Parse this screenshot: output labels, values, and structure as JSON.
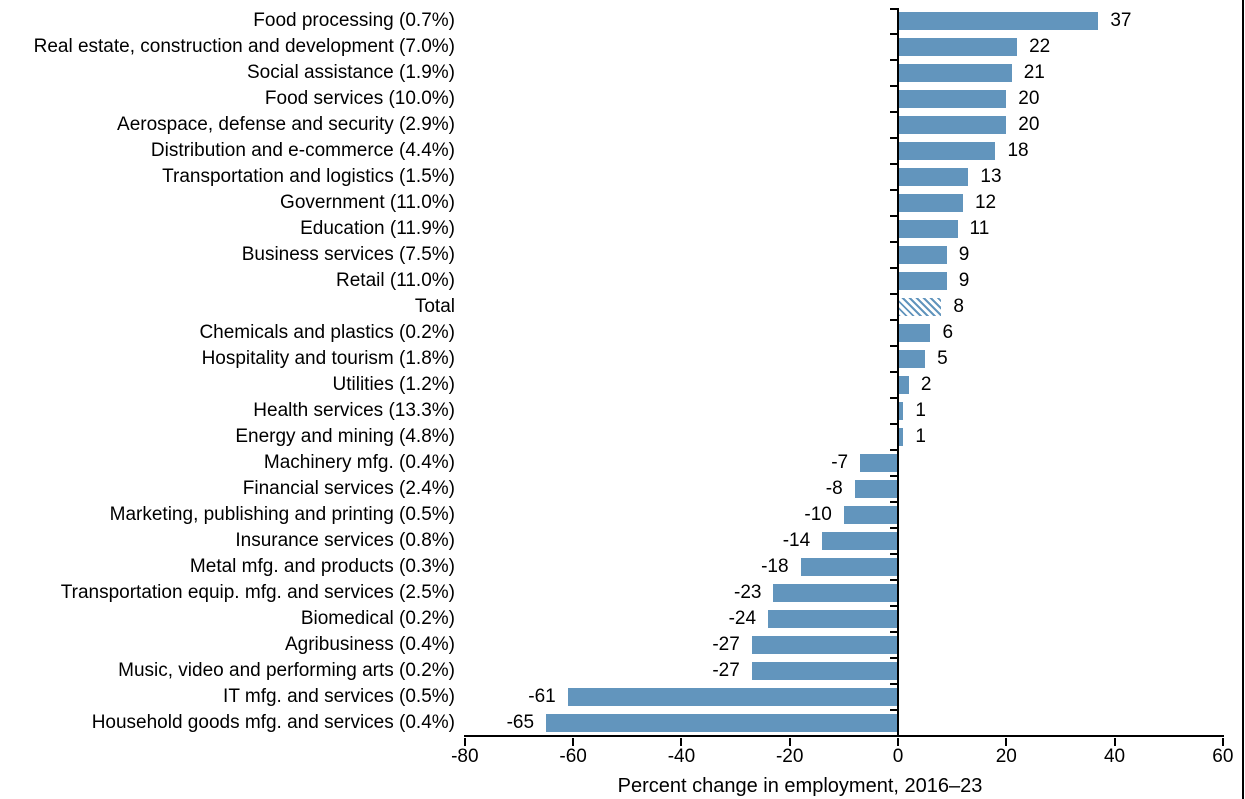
{
  "chart_data": {
    "type": "bar",
    "orientation": "horizontal",
    "title": "",
    "xlabel": "Percent change in employment, 2016–23",
    "ylabel": "",
    "xlim": [
      -80,
      60
    ],
    "xticks": [
      -80,
      -60,
      -40,
      -20,
      0,
      20,
      40,
      60
    ],
    "grid": false,
    "legend": "none",
    "bar_color": "#6295BD",
    "hatched_bar_style": "diagonal-stripes",
    "rows": [
      {
        "label": "Food processing (0.7%)",
        "value": 37,
        "hatched": false
      },
      {
        "label": "Real estate, construction and development (7.0%)",
        "value": 22,
        "hatched": false
      },
      {
        "label": "Social assistance (1.9%)",
        "value": 21,
        "hatched": false
      },
      {
        "label": "Food services (10.0%)",
        "value": 20,
        "hatched": false
      },
      {
        "label": "Aerospace, defense and security (2.9%)",
        "value": 20,
        "hatched": false
      },
      {
        "label": "Distribution and e-commerce (4.4%)",
        "value": 18,
        "hatched": false
      },
      {
        "label": "Transportation and logistics (1.5%)",
        "value": 13,
        "hatched": false
      },
      {
        "label": "Government (11.0%)",
        "value": 12,
        "hatched": false
      },
      {
        "label": "Education (11.9%)",
        "value": 11,
        "hatched": false
      },
      {
        "label": "Business services (7.5%)",
        "value": 9,
        "hatched": false
      },
      {
        "label": "Retail (11.0%)",
        "value": 9,
        "hatched": false
      },
      {
        "label": "Total",
        "value": 8,
        "hatched": true
      },
      {
        "label": "Chemicals and plastics (0.2%)",
        "value": 6,
        "hatched": false
      },
      {
        "label": "Hospitality and tourism (1.8%)",
        "value": 5,
        "hatched": false
      },
      {
        "label": "Utilities (1.2%)",
        "value": 2,
        "hatched": false
      },
      {
        "label": "Health services (13.3%)",
        "value": 1,
        "hatched": false
      },
      {
        "label": "Energy and mining (4.8%)",
        "value": 1,
        "hatched": false
      },
      {
        "label": "Machinery mfg. (0.4%)",
        "value": -7,
        "hatched": false
      },
      {
        "label": "Financial services (2.4%)",
        "value": -8,
        "hatched": false
      },
      {
        "label": "Marketing, publishing and printing (0.5%)",
        "value": -10,
        "hatched": false
      },
      {
        "label": "Insurance services (0.8%)",
        "value": -14,
        "hatched": false
      },
      {
        "label": "Metal mfg. and products (0.3%)",
        "value": -18,
        "hatched": false
      },
      {
        "label": "Transportation equip. mfg. and services (2.5%)",
        "value": -23,
        "hatched": false
      },
      {
        "label": "Biomedical (0.2%)",
        "value": -24,
        "hatched": false
      },
      {
        "label": "Agribusiness (0.4%)",
        "value": -27,
        "hatched": false
      },
      {
        "label": "Music, video and performing arts (0.2%)",
        "value": -27,
        "hatched": false
      },
      {
        "label": "IT mfg. and services (0.5%)",
        "value": -61,
        "hatched": false
      },
      {
        "label": "Household goods mfg. and services (0.4%)",
        "value": -65,
        "hatched": false
      }
    ]
  }
}
